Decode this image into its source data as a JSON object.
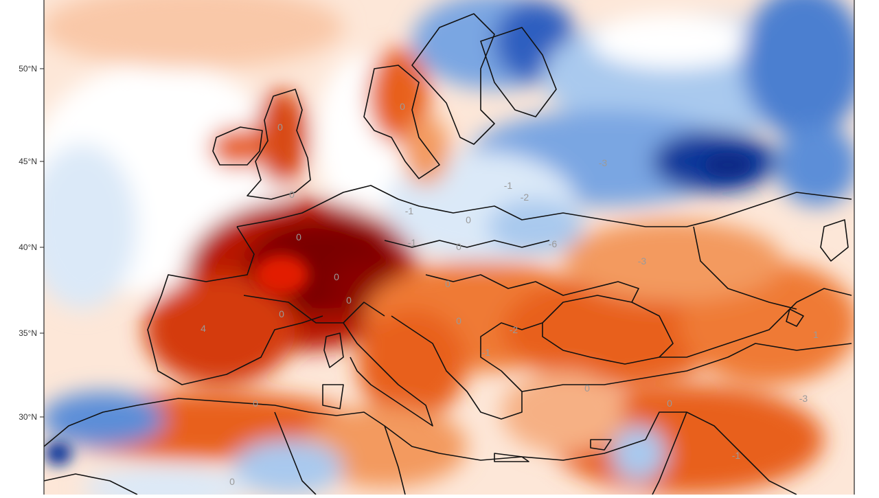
{
  "map": {
    "latitude_labels": [
      "50°N",
      "45°N",
      "40°N",
      "35°N",
      "30°N"
    ],
    "grid_values": [
      "0",
      "0",
      "0",
      "0",
      "0",
      "0",
      "0",
      "0",
      "-1",
      "-1",
      "-6",
      "-1",
      "-3",
      "-2",
      "0",
      "4",
      "0",
      "0",
      "-2",
      "-3",
      "-3",
      "-1",
      "0",
      "0",
      "0",
      "1",
      "-1",
      "0"
    ],
    "palette": {
      "dark_red": "#7a0000",
      "red": "#c81a00",
      "orange": "#e8601c",
      "light_orange": "#f6b084",
      "pale_orange": "#fde0cc",
      "white": "#ffffff",
      "pale_blue": "#dbe9f8",
      "light_blue": "#a9c9ee",
      "blue": "#5b8ed8",
      "dark_blue": "#10389a"
    },
    "colorscale": "diverging red-white-blue anomaly",
    "boundaries": "country borders in black"
  }
}
